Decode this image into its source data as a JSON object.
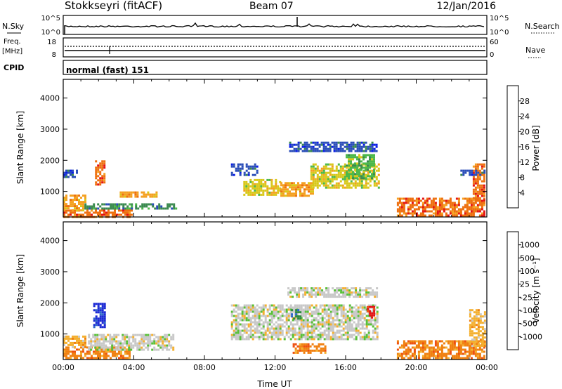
{
  "header": {
    "station": "Stokkseyri (fitACF)",
    "beam": "Beam 07",
    "date": "12/Jan/2016"
  },
  "nsky_panel": {
    "left_label": "N.Sky",
    "right_label": "N.Search",
    "left_ticks": [
      "10^5",
      "10^0"
    ],
    "right_ticks": [
      "10^5",
      "10^0"
    ]
  },
  "freq_panel": {
    "left_label_1": "Freq.",
    "left_label_2": "[MHz]",
    "right_label": "Nave",
    "left_ticks": [
      "18",
      "8"
    ],
    "right_ticks": [
      "60",
      "0"
    ]
  },
  "cpid_panel": {
    "label": "CPID",
    "mode": "normal (fast) 151"
  },
  "colors": {
    "frame": "#000000",
    "empty": "#ffffff",
    "ground_scatter": "#c8c8c8"
  },
  "chart_data": [
    {
      "type": "heatmap",
      "panel": "power",
      "ylabel": "Slant Range [km]",
      "yticks": [
        1000,
        2000,
        3000,
        4000
      ],
      "ylim": [
        180,
        4600
      ],
      "x_hours": [
        0,
        24
      ],
      "colorbar": {
        "label": "Power [dB]",
        "tick_labels": [
          "4",
          "8",
          "12",
          "16",
          "20",
          "24",
          "28"
        ],
        "colors": [
          "#0a1ee6",
          "#2a4db8",
          "#3b8a50",
          "#4cb84a",
          "#d8c81a",
          "#f4a020",
          "#ee7010",
          "#e41414"
        ]
      },
      "regions": [
        {
          "t0": 0.0,
          "t1": 3.9,
          "r0": 200,
          "r1": 420,
          "level": 6
        },
        {
          "t0": 0.0,
          "t1": 1.2,
          "r0": 420,
          "r1": 900,
          "level": 5
        },
        {
          "t0": 1.2,
          "t1": 6.4,
          "r0": 450,
          "r1": 620,
          "level": 2
        },
        {
          "t0": 3.2,
          "t1": 5.3,
          "r0": 830,
          "r1": 1000,
          "level": 5
        },
        {
          "t0": 1.8,
          "t1": 2.3,
          "r0": 1250,
          "r1": 2000,
          "level": 6
        },
        {
          "t0": 0.0,
          "t1": 0.8,
          "r0": 1450,
          "r1": 1700,
          "level": 1
        },
        {
          "t0": 9.5,
          "t1": 11.0,
          "r0": 1500,
          "r1": 1900,
          "level": 1
        },
        {
          "t0": 10.2,
          "t1": 12.3,
          "r0": 900,
          "r1": 1400,
          "level": 4
        },
        {
          "t0": 12.3,
          "t1": 14.2,
          "r0": 850,
          "r1": 1300,
          "level": 5
        },
        {
          "t0": 14.0,
          "t1": 17.9,
          "r0": 1100,
          "r1": 1900,
          "level": 4
        },
        {
          "t0": 16.0,
          "t1": 17.6,
          "r0": 1450,
          "r1": 2200,
          "level": 3
        },
        {
          "t0": 12.8,
          "t1": 17.8,
          "r0": 2300,
          "r1": 2600,
          "level": 1
        },
        {
          "t0": 18.9,
          "t1": 23.8,
          "r0": 220,
          "r1": 800,
          "level": 6
        },
        {
          "t0": 23.2,
          "t1": 23.9,
          "r0": 700,
          "r1": 1900,
          "level": 6
        },
        {
          "t0": 22.5,
          "t1": 23.9,
          "r0": 1500,
          "r1": 1700,
          "level": 1
        }
      ]
    },
    {
      "type": "heatmap",
      "panel": "velocity",
      "ylabel": "Slant Range [km]",
      "yticks": [
        1000,
        2000,
        3000,
        4000
      ],
      "ylim": [
        180,
        4600
      ],
      "x_hours": [
        0,
        24
      ],
      "xticks": [
        "00:00",
        "04:00",
        "08:00",
        "12:00",
        "16:00",
        "20:00",
        "00:00"
      ],
      "xlabel": "Time UT",
      "colorbar": {
        "label": "Velocity [m s⁻¹]",
        "tick_labels": [
          "1000",
          "500",
          "100",
          "25",
          "-25",
          "-100",
          "-500",
          "-1000"
        ],
        "colors": [
          "#1c2ad4",
          "#2d68c8",
          "#2e8a40",
          "#58c038",
          "#c8c8c8",
          "#f4b030",
          "#f08010",
          "#ee5010",
          "#e41414"
        ]
      },
      "regions": [
        {
          "t0": 0.0,
          "t1": 3.8,
          "r0": 200,
          "r1": 600,
          "level": 6
        },
        {
          "t0": 0.0,
          "t1": 1.3,
          "r0": 600,
          "r1": 950,
          "level": 5
        },
        {
          "t0": 1.4,
          "t1": 6.2,
          "r0": 500,
          "r1": 1000,
          "level": 4
        },
        {
          "t0": 1.7,
          "t1": 2.3,
          "r0": 1250,
          "r1": 2000,
          "level": 0
        },
        {
          "t0": 9.5,
          "t1": 17.8,
          "r0": 850,
          "r1": 1950,
          "level": 4
        },
        {
          "t0": 12.7,
          "t1": 17.8,
          "r0": 2200,
          "r1": 2500,
          "level": 4
        },
        {
          "t0": 12.9,
          "t1": 13.4,
          "r0": 1500,
          "r1": 1800,
          "level": 2
        },
        {
          "t0": 17.2,
          "t1": 17.6,
          "r0": 1500,
          "r1": 1900,
          "level": 8
        },
        {
          "t0": 13.0,
          "t1": 14.8,
          "r0": 400,
          "r1": 700,
          "level": 6
        },
        {
          "t0": 18.9,
          "t1": 23.8,
          "r0": 200,
          "r1": 800,
          "level": 6
        },
        {
          "t0": 23.0,
          "t1": 23.9,
          "r0": 600,
          "r1": 1800,
          "level": 5
        }
      ]
    }
  ]
}
